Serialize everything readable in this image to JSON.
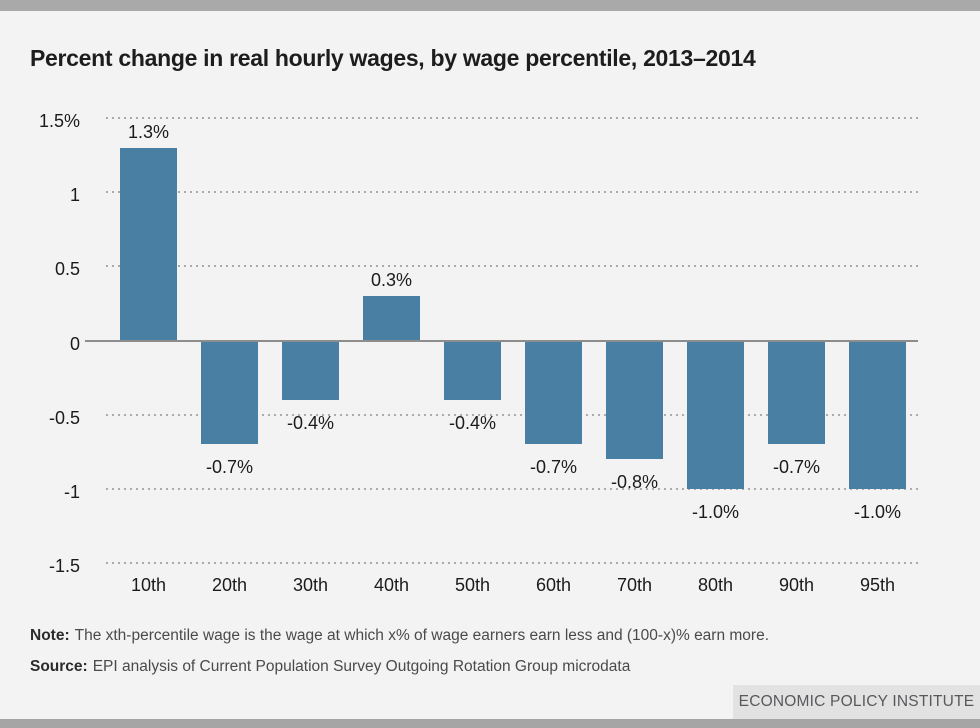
{
  "page": {
    "title": "Percent change in real hourly wages, by wage percentile, 2013–2014",
    "note_label": "Note:",
    "note_text": "The xth-percentile wage is the wage at which x% of wage earners earn less and (100-x)% earn more.",
    "source_label": "Source:",
    "source_text": "EPI analysis of Current Population Survey Outgoing Rotation Group microdata",
    "footer_brand": "ECONOMIC POLICY INSTITUTE"
  },
  "colors": {
    "bar": "#4a7fa4",
    "background": "#f3f3f4",
    "top_bar": "#a9a9a9",
    "bottom_bar": "#a5a5a5",
    "footer_box": "#e2e2e3",
    "footer_text": "#59595c",
    "gridline": "#ababab",
    "zero_line": "#8d8d8d",
    "text": "#1b1b1b"
  },
  "chart_data": {
    "type": "bar",
    "title": "Percent change in real hourly wages, by wage percentile, 2013–2014",
    "categories": [
      "10th",
      "20th",
      "30th",
      "40th",
      "50th",
      "60th",
      "70th",
      "80th",
      "90th",
      "95th"
    ],
    "values": [
      1.3,
      -0.7,
      -0.4,
      0.3,
      -0.4,
      -0.7,
      -0.8,
      -1.0,
      -0.7,
      -1.0
    ],
    "value_labels": [
      "1.3%",
      "-0.7%",
      "-0.4%",
      "0.3%",
      "-0.4%",
      "-0.7%",
      "-0.8%",
      "-1.0%",
      "-0.7%",
      "-1.0%"
    ],
    "xlabel": "",
    "ylabel": "",
    "ylim": [
      -1.5,
      1.5
    ],
    "ytick_values": [
      1.5,
      1,
      0.5,
      0,
      -0.5,
      -1,
      -1.5
    ],
    "ytick_labels": [
      "1.5%",
      "1",
      "0.5",
      "0",
      "-0.5",
      "-1",
      "-1.5"
    ],
    "grid": "horizontal dotted",
    "legend": "none",
    "bar_color": "#4a7fa4"
  }
}
